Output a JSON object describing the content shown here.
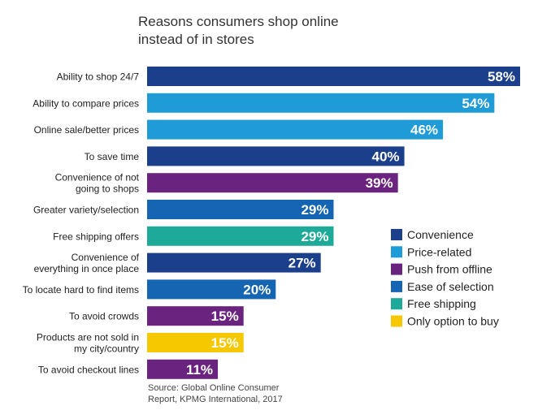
{
  "chart_data": {
    "type": "bar",
    "orientation": "horizontal",
    "title_lines": [
      "Reasons consumers shop online",
      "instead of in stores"
    ],
    "source_lines": [
      "Source: Global Online Consumer",
      "Report, KPMG International, 2017"
    ],
    "categories": [
      "Ability to shop 24/7",
      "Ability to compare prices",
      "Online sale/better prices",
      "To save time",
      "Convenience of not going to shops",
      "Greater variety/selection",
      "Free shipping offers",
      "Convenience of everything in once place",
      "To locate hard to find items",
      "To avoid crowds",
      "Products are not sold in my city/country",
      "To avoid checkout lines"
    ],
    "category_lines": [
      [
        "Ability to shop 24/7"
      ],
      [
        "Ability to compare prices"
      ],
      [
        "Online sale/better prices"
      ],
      [
        "To save time"
      ],
      [
        "Convenience of not",
        "going to shops"
      ],
      [
        "Greater variety/selection"
      ],
      [
        "Free shipping offers"
      ],
      [
        "Convenience of",
        "everything in once place"
      ],
      [
        "To locate hard to find items"
      ],
      [
        "To avoid crowds"
      ],
      [
        "Products are not sold in",
        "my city/country"
      ],
      [
        "To avoid checkout lines"
      ]
    ],
    "values": [
      58,
      54,
      46,
      40,
      39,
      29,
      29,
      27,
      20,
      15,
      15,
      11
    ],
    "value_labels": [
      "58%",
      "54%",
      "46%",
      "40%",
      "39%",
      "29%",
      "29%",
      "27%",
      "20%",
      "15%",
      "15%",
      "11%"
    ],
    "groups": [
      "Convenience",
      "Price-related",
      "Price-related",
      "Convenience",
      "Push from offline",
      "Ease of selection",
      "Free shipping",
      "Convenience",
      "Ease of selection",
      "Push from offline",
      "Only option to buy",
      "Push from offline"
    ],
    "legend": [
      {
        "name": "Convenience",
        "color": "#1B3F8B"
      },
      {
        "name": "Price-related",
        "color": "#1F9BD7"
      },
      {
        "name": "Push from offline",
        "color": "#6A237E"
      },
      {
        "name": "Ease of selection",
        "color": "#1565B2"
      },
      {
        "name": "Free shipping",
        "color": "#1EAA99"
      },
      {
        "name": "Only option to buy",
        "color": "#F5C800"
      }
    ],
    "legend_position": "right",
    "xlim": [
      0,
      58
    ],
    "grid": false
  }
}
